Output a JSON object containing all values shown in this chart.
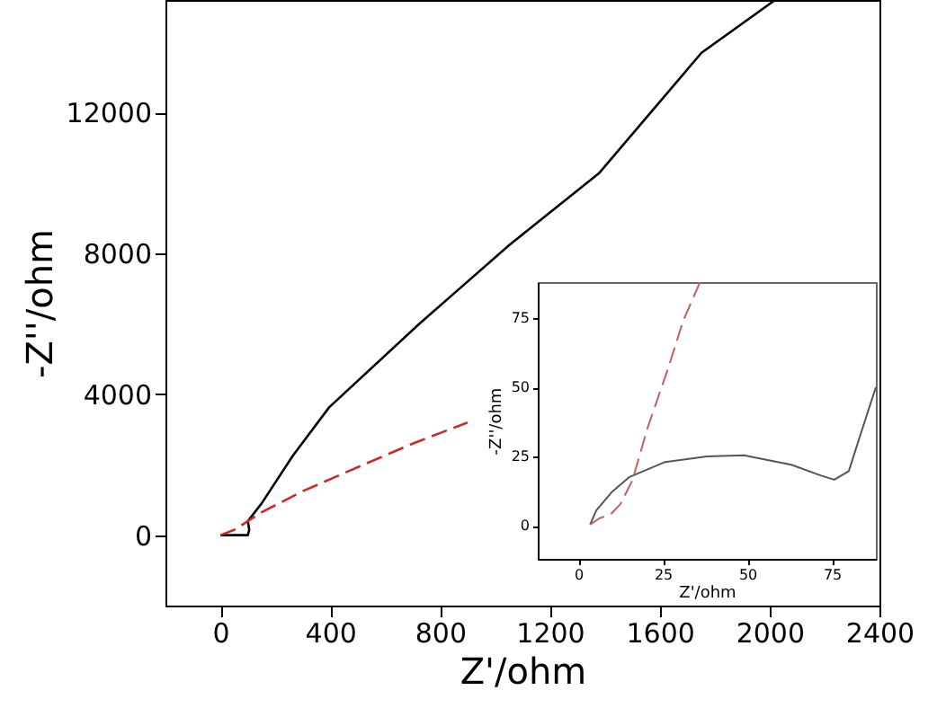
{
  "chart_data": [
    {
      "type": "line",
      "xlabel": "Z'/ohm",
      "ylabel": "-Z''/ohm",
      "xlim": [
        -200,
        2400
      ],
      "ylim": [
        -2000,
        15200
      ],
      "xticks": [
        0,
        400,
        800,
        1200,
        1600,
        2000,
        2400
      ],
      "yticks": [
        0,
        4000,
        8000,
        12000
      ],
      "grid": false,
      "series": [
        {
          "color": "#000000",
          "line_style": "solid",
          "x": [
            0,
            100,
            105,
            100,
            150,
            265,
            396,
            724,
            1052,
            1380,
            1752,
            2020
          ],
          "values": [
            0,
            0,
            150,
            400,
            900,
            2270,
            3630,
            6000,
            8240,
            10290,
            13700,
            15200
          ]
        },
        {
          "color": "#cc2a2a",
          "line_style": "dashed",
          "x": [
            0,
            50,
            150,
            300,
            500,
            700,
            900
          ],
          "values": [
            0,
            150,
            650,
            1250,
            1930,
            2600,
            3200
          ]
        }
      ]
    },
    {
      "type": "line",
      "xlabel": "Z'/ohm",
      "ylabel": "-Z''/ohm",
      "xlim": [
        -12,
        88
      ],
      "ylim": [
        -12,
        88
      ],
      "xticks": [
        0,
        25,
        50,
        75
      ],
      "yticks": [
        0,
        25,
        50,
        75
      ],
      "grid": false,
      "series": [
        {
          "color": "#555555",
          "line_style": "solid",
          "x": [
            3.5,
            5.3,
            9.8,
            15,
            25.7,
            38,
            49,
            63,
            72,
            75.7,
            80,
            84,
            88
          ],
          "values": [
            0.4,
            5.5,
            12,
            17.5,
            23,
            25,
            25.4,
            22,
            18,
            16.6,
            19.7,
            35,
            50
          ]
        },
        {
          "color": "#c06060",
          "line_style": "dashed",
          "x": [
            3.5,
            6.2,
            9.8,
            12.4,
            16,
            20.4,
            26.6,
            31,
            36
          ],
          "values": [
            0.4,
            2.6,
            4.4,
            7.7,
            16.4,
            35,
            57,
            74,
            88
          ]
        }
      ]
    }
  ]
}
